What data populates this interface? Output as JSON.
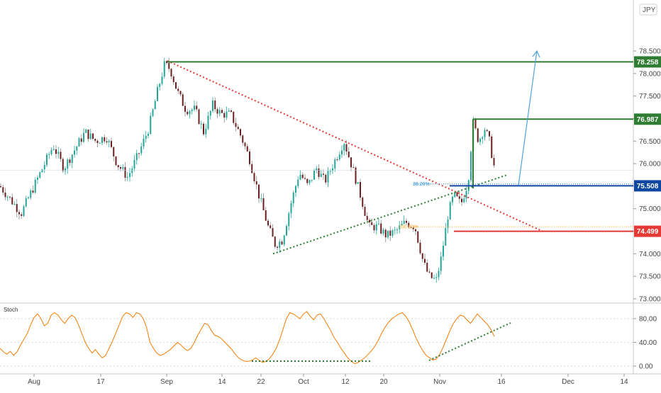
{
  "chart_data": [
    {
      "type": "candlestick",
      "currency_label": "JPY",
      "ylim": [
        73.0,
        79.0
      ],
      "y_ticks": [
        "73.000",
        "73.500",
        "74.000",
        "74.500",
        "75.000",
        "75.500",
        "76.000",
        "76.500",
        "77.000",
        "77.500",
        "78.000",
        "78.500"
      ],
      "x_ticks": [
        "Aug",
        "17",
        "Sep",
        "14",
        "22",
        "Oct",
        "12",
        "20",
        "Nov",
        "16",
        "Dec",
        "14"
      ],
      "levels": [
        {
          "name": "resistance",
          "value": 78.258,
          "label": "78.258",
          "color": "#2e7d32"
        },
        {
          "name": "first-resistance",
          "value": 76.987,
          "label": "76.987",
          "color": "#2e7d32"
        },
        {
          "name": "pivot",
          "value": 75.508,
          "label": "75.508",
          "color": "#0d47a1"
        },
        {
          "name": "support",
          "value": 74.499,
          "label": "74.499",
          "color": "#e53935"
        }
      ],
      "fib_labels": [
        {
          "label": "38.20%",
          "color": "#1e88e5"
        },
        {
          "label": "100.00%",
          "color": "#f9a825"
        }
      ],
      "colors": {
        "up": "#26a69a",
        "down": "#6d1f1f",
        "downtrend": "#e53935",
        "uptrend": "#2e7d32",
        "projection": "#4fa3e0"
      }
    },
    {
      "type": "line",
      "title": "Stoch",
      "ylim": [
        0,
        100
      ],
      "y_ticks": [
        "0.00",
        "40.00",
        "80.00"
      ],
      "series": [
        {
          "values": [
            30,
            24,
            20,
            25,
            18,
            24,
            35,
            45,
            55,
            70,
            82,
            88,
            80,
            68,
            72,
            86,
            90,
            86,
            78,
            72,
            80,
            86,
            82,
            70,
            55,
            40,
            30,
            22,
            28,
            20,
            14,
            18,
            30,
            42,
            56,
            70,
            84,
            90,
            88,
            82,
            90,
            88,
            80,
            65,
            40,
            30,
            22,
            18,
            20,
            24,
            28,
            34,
            40,
            36,
            30,
            26,
            30,
            40,
            52,
            62,
            72,
            70,
            60,
            52,
            50,
            46,
            40,
            34,
            28,
            20,
            14,
            10,
            8,
            8,
            10,
            14,
            10,
            6,
            8,
            12,
            20,
            30,
            44,
            62,
            80,
            90,
            88,
            84,
            80,
            88,
            92,
            84,
            78,
            86,
            88,
            80,
            70,
            60,
            48,
            40,
            30,
            22,
            14,
            8,
            4,
            6,
            10,
            14,
            20,
            26,
            34,
            44,
            56,
            66,
            74,
            80,
            84,
            88,
            90,
            84,
            75,
            62,
            48,
            36,
            26,
            18,
            14,
            10,
            12,
            20,
            32,
            46,
            60,
            72,
            80,
            86,
            84,
            78,
            72,
            80,
            88,
            82,
            76,
            70,
            62,
            50
          ],
          "color": "#f57c00"
        }
      ],
      "colors": {
        "trendline": "#2e7d32"
      }
    }
  ]
}
